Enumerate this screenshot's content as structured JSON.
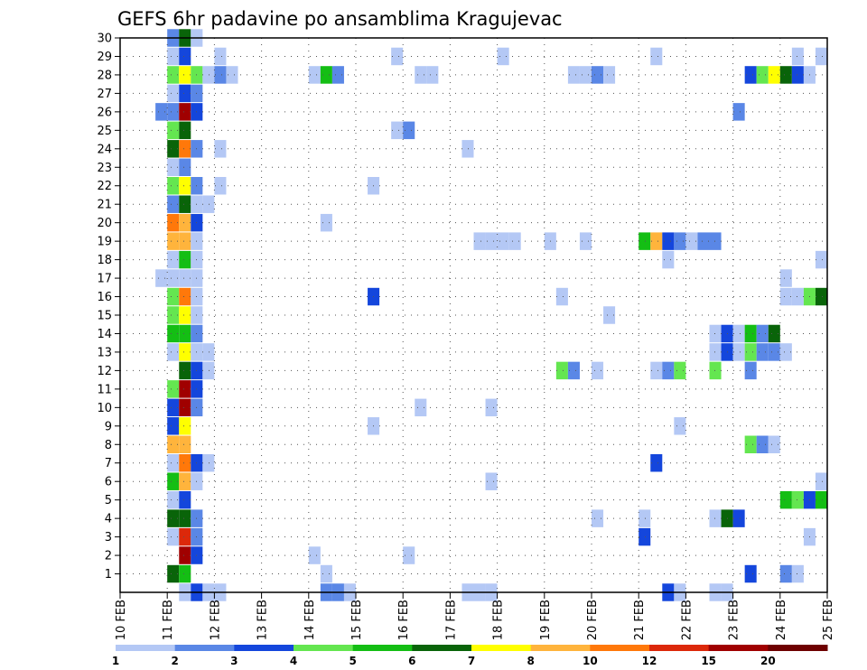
{
  "chart_data": {
    "type": "heatmap",
    "title": "GEFS 6hr padavine po ansamblima Kragujevac",
    "xlabel": "",
    "ylabel": "",
    "x_ticks": [
      "10 FEB",
      "11 FEB",
      "12 FEB",
      "13 FEB",
      "14 FEB",
      "15 FEB",
      "16 FEB",
      "17 FEB",
      "18 FEB",
      "19 FEB",
      "20 FEB",
      "21 FEB",
      "22 FEB",
      "23 FEB",
      "24 FEB",
      "25 FEB"
    ],
    "y_ticks": [
      1,
      2,
      3,
      4,
      5,
      6,
      7,
      8,
      9,
      10,
      11,
      12,
      13,
      14,
      15,
      16,
      17,
      18,
      19,
      20,
      21,
      22,
      23,
      24,
      25,
      26,
      27,
      28,
      29,
      30
    ],
    "xlim_days": [
      0,
      15
    ],
    "ylim": [
      0,
      30
    ],
    "grid": true,
    "legend": {
      "placement": "bottom",
      "levels": [
        "1",
        "2",
        "3",
        "4",
        "5",
        "6",
        "7",
        "8",
        "10",
        "12",
        "15",
        "20"
      ],
      "colors": [
        "#b4c8f5",
        "#5a87e6",
        "#1446dc",
        "#64e650",
        "#14be14",
        "#096409",
        "#ffff00",
        "#ffb43c",
        "#ff780a",
        "#dc280a",
        "#a00000",
        "#6e0000"
      ]
    },
    "cell_width_days": 0.25,
    "cells": [
      {
        "member": 1,
        "day": 11.0,
        "level": 6
      },
      {
        "member": 1,
        "day": 11.25,
        "level": 5
      },
      {
        "member": 1,
        "day": 14.25,
        "level": 1
      },
      {
        "member": 1,
        "day": 23.25,
        "level": 3
      },
      {
        "member": 1,
        "day": 24.0,
        "level": 2
      },
      {
        "member": 1,
        "day": 24.25,
        "level": 1
      },
      {
        "member": 2,
        "day": 11.25,
        "level": 11
      },
      {
        "member": 2,
        "day": 11.5,
        "level": 3
      },
      {
        "member": 2,
        "day": 14.0,
        "level": 1
      },
      {
        "member": 2,
        "day": 16.0,
        "level": 1
      },
      {
        "member": 3,
        "day": 11.0,
        "level": 1
      },
      {
        "member": 3,
        "day": 11.25,
        "level": 10
      },
      {
        "member": 3,
        "day": 11.5,
        "level": 2
      },
      {
        "member": 3,
        "day": 21.0,
        "level": 3
      },
      {
        "member": 3,
        "day": 24.5,
        "level": 1
      },
      {
        "member": 4,
        "day": 11.0,
        "level": 6
      },
      {
        "member": 4,
        "day": 11.25,
        "level": 6
      },
      {
        "member": 4,
        "day": 11.5,
        "level": 2
      },
      {
        "member": 4,
        "day": 20.0,
        "level": 1
      },
      {
        "member": 4,
        "day": 21.0,
        "level": 1
      },
      {
        "member": 4,
        "day": 22.5,
        "level": 1
      },
      {
        "member": 4,
        "day": 22.75,
        "level": 6
      },
      {
        "member": 4,
        "day": 23.0,
        "level": 3
      },
      {
        "member": 5,
        "day": 11.0,
        "level": 1
      },
      {
        "member": 5,
        "day": 11.25,
        "level": 3
      },
      {
        "member": 5,
        "day": 24.0,
        "level": 5
      },
      {
        "member": 5,
        "day": 24.25,
        "level": 4
      },
      {
        "member": 5,
        "day": 24.5,
        "level": 3
      },
      {
        "member": 5,
        "day": 24.75,
        "level": 5
      },
      {
        "member": 6,
        "day": 11.0,
        "level": 5
      },
      {
        "member": 6,
        "day": 11.25,
        "level": 8
      },
      {
        "member": 6,
        "day": 11.5,
        "level": 1
      },
      {
        "member": 6,
        "day": 17.75,
        "level": 1
      },
      {
        "member": 6,
        "day": 24.75,
        "level": 1
      },
      {
        "member": 7,
        "day": 11.0,
        "level": 1
      },
      {
        "member": 7,
        "day": 11.25,
        "level": 9
      },
      {
        "member": 7,
        "day": 11.5,
        "level": 3
      },
      {
        "member": 7,
        "day": 11.75,
        "level": 1
      },
      {
        "member": 7,
        "day": 21.25,
        "level": 3
      },
      {
        "member": 8,
        "day": 11.0,
        "level": 8
      },
      {
        "member": 8,
        "day": 11.25,
        "level": 8
      },
      {
        "member": 8,
        "day": 23.25,
        "level": 4
      },
      {
        "member": 8,
        "day": 23.5,
        "level": 2
      },
      {
        "member": 8,
        "day": 23.75,
        "level": 1
      },
      {
        "member": 9,
        "day": 11.0,
        "level": 3
      },
      {
        "member": 9,
        "day": 11.25,
        "level": 7
      },
      {
        "member": 9,
        "day": 15.25,
        "level": 1
      },
      {
        "member": 9,
        "day": 21.75,
        "level": 1
      },
      {
        "member": 10,
        "day": 11.0,
        "level": 3
      },
      {
        "member": 10,
        "day": 11.25,
        "level": 11
      },
      {
        "member": 10,
        "day": 11.5,
        "level": 2
      },
      {
        "member": 10,
        "day": 16.25,
        "level": 1
      },
      {
        "member": 10,
        "day": 17.75,
        "level": 1
      },
      {
        "member": 11,
        "day": 11.0,
        "level": 4
      },
      {
        "member": 11,
        "day": 11.25,
        "level": 11
      },
      {
        "member": 11,
        "day": 11.5,
        "level": 3
      },
      {
        "member": 12,
        "day": 11.25,
        "level": 6
      },
      {
        "member": 12,
        "day": 11.5,
        "level": 3
      },
      {
        "member": 12,
        "day": 11.75,
        "level": 1
      },
      {
        "member": 12,
        "day": 19.25,
        "level": 4
      },
      {
        "member": 12,
        "day": 19.5,
        "level": 2
      },
      {
        "member": 12,
        "day": 20.0,
        "level": 1
      },
      {
        "member": 12,
        "day": 21.25,
        "level": 1
      },
      {
        "member": 12,
        "day": 21.5,
        "level": 2
      },
      {
        "member": 12,
        "day": 21.75,
        "level": 4
      },
      {
        "member": 12,
        "day": 22.5,
        "level": 4
      },
      {
        "member": 12,
        "day": 23.25,
        "level": 2
      },
      {
        "member": 13,
        "day": 11.0,
        "level": 1
      },
      {
        "member": 13,
        "day": 11.25,
        "level": 7
      },
      {
        "member": 13,
        "day": 11.5,
        "level": 1
      },
      {
        "member": 13,
        "day": 11.75,
        "level": 1
      },
      {
        "member": 13,
        "day": 22.5,
        "level": 1
      },
      {
        "member": 13,
        "day": 22.75,
        "level": 3
      },
      {
        "member": 13,
        "day": 23.0,
        "level": 1
      },
      {
        "member": 13,
        "day": 23.25,
        "level": 4
      },
      {
        "member": 13,
        "day": 23.5,
        "level": 2
      },
      {
        "member": 13,
        "day": 23.75,
        "level": 2
      },
      {
        "member": 13,
        "day": 24.0,
        "level": 1
      },
      {
        "member": 14,
        "day": 11.0,
        "level": 5
      },
      {
        "member": 14,
        "day": 11.25,
        "level": 5
      },
      {
        "member": 14,
        "day": 11.5,
        "level": 2
      },
      {
        "member": 14,
        "day": 22.5,
        "level": 1
      },
      {
        "member": 14,
        "day": 22.75,
        "level": 3
      },
      {
        "member": 14,
        "day": 23.0,
        "level": 1
      },
      {
        "member": 14,
        "day": 23.25,
        "level": 5
      },
      {
        "member": 14,
        "day": 23.5,
        "level": 2
      },
      {
        "member": 14,
        "day": 23.75,
        "level": 6
      },
      {
        "member": 15,
        "day": 11.0,
        "level": 4
      },
      {
        "member": 15,
        "day": 11.25,
        "level": 7
      },
      {
        "member": 15,
        "day": 11.5,
        "level": 1
      },
      {
        "member": 15,
        "day": 20.25,
        "level": 1
      },
      {
        "member": 16,
        "day": 11.0,
        "level": 4
      },
      {
        "member": 16,
        "day": 11.25,
        "level": 9
      },
      {
        "member": 16,
        "day": 11.5,
        "level": 1
      },
      {
        "member": 16,
        "day": 15.25,
        "level": 3
      },
      {
        "member": 16,
        "day": 19.25,
        "level": 1
      },
      {
        "member": 16,
        "day": 24.0,
        "level": 1
      },
      {
        "member": 16,
        "day": 24.25,
        "level": 1
      },
      {
        "member": 16,
        "day": 24.5,
        "level": 4
      },
      {
        "member": 16,
        "day": 24.75,
        "level": 6
      },
      {
        "member": 17,
        "day": 10.75,
        "level": 1
      },
      {
        "member": 17,
        "day": 11.0,
        "level": 1
      },
      {
        "member": 17,
        "day": 11.25,
        "level": 1
      },
      {
        "member": 17,
        "day": 11.5,
        "level": 1
      },
      {
        "member": 17,
        "day": 24.0,
        "level": 1
      },
      {
        "member": 18,
        "day": 11.0,
        "level": 1
      },
      {
        "member": 18,
        "day": 11.25,
        "level": 5
      },
      {
        "member": 18,
        "day": 11.5,
        "level": 1
      },
      {
        "member": 18,
        "day": 21.5,
        "level": 1
      },
      {
        "member": 18,
        "day": 24.75,
        "level": 1
      },
      {
        "member": 19,
        "day": 11.0,
        "level": 8
      },
      {
        "member": 19,
        "day": 11.25,
        "level": 8
      },
      {
        "member": 19,
        "day": 11.5,
        "level": 1
      },
      {
        "member": 19,
        "day": 17.5,
        "level": 1
      },
      {
        "member": 19,
        "day": 17.75,
        "level": 1
      },
      {
        "member": 19,
        "day": 18.0,
        "level": 1
      },
      {
        "member": 19,
        "day": 18.25,
        "level": 1
      },
      {
        "member": 19,
        "day": 19.0,
        "level": 1
      },
      {
        "member": 19,
        "day": 19.75,
        "level": 1
      },
      {
        "member": 19,
        "day": 21.0,
        "level": 5
      },
      {
        "member": 19,
        "day": 21.25,
        "level": 8
      },
      {
        "member": 19,
        "day": 21.5,
        "level": 3
      },
      {
        "member": 19,
        "day": 21.75,
        "level": 2
      },
      {
        "member": 19,
        "day": 22.0,
        "level": 1
      },
      {
        "member": 19,
        "day": 22.25,
        "level": 2
      },
      {
        "member": 19,
        "day": 22.5,
        "level": 2
      },
      {
        "member": 20,
        "day": 11.0,
        "level": 9
      },
      {
        "member": 20,
        "day": 11.25,
        "level": 8
      },
      {
        "member": 20,
        "day": 11.5,
        "level": 3
      },
      {
        "member": 20,
        "day": 14.25,
        "level": 1
      },
      {
        "member": 21,
        "day": 11.0,
        "level": 2
      },
      {
        "member": 21,
        "day": 11.25,
        "level": 6
      },
      {
        "member": 21,
        "day": 11.5,
        "level": 1
      },
      {
        "member": 21,
        "day": 11.75,
        "level": 1
      },
      {
        "member": 22,
        "day": 11.0,
        "level": 4
      },
      {
        "member": 22,
        "day": 11.25,
        "level": 7
      },
      {
        "member": 22,
        "day": 11.5,
        "level": 2
      },
      {
        "member": 22,
        "day": 12.0,
        "level": 1
      },
      {
        "member": 22,
        "day": 15.25,
        "level": 1
      },
      {
        "member": 23,
        "day": 11.0,
        "level": 1
      },
      {
        "member": 23,
        "day": 11.25,
        "level": 2
      },
      {
        "member": 24,
        "day": 11.0,
        "level": 6
      },
      {
        "member": 24,
        "day": 11.25,
        "level": 9
      },
      {
        "member": 24,
        "day": 11.5,
        "level": 2
      },
      {
        "member": 24,
        "day": 12.0,
        "level": 1
      },
      {
        "member": 24,
        "day": 17.25,
        "level": 1
      },
      {
        "member": 25,
        "day": 11.0,
        "level": 4
      },
      {
        "member": 25,
        "day": 11.25,
        "level": 6
      },
      {
        "member": 25,
        "day": 15.75,
        "level": 1
      },
      {
        "member": 25,
        "day": 16.0,
        "level": 2
      },
      {
        "member": 26,
        "day": 10.75,
        "level": 2
      },
      {
        "member": 26,
        "day": 11.0,
        "level": 2
      },
      {
        "member": 26,
        "day": 11.25,
        "level": 11
      },
      {
        "member": 26,
        "day": 11.5,
        "level": 3
      },
      {
        "member": 26,
        "day": 23.0,
        "level": 2
      },
      {
        "member": 27,
        "day": 11.0,
        "level": 1
      },
      {
        "member": 27,
        "day": 11.25,
        "level": 3
      },
      {
        "member": 27,
        "day": 11.5,
        "level": 2
      },
      {
        "member": 28,
        "day": 11.0,
        "level": 4
      },
      {
        "member": 28,
        "day": 11.25,
        "level": 7
      },
      {
        "member": 28,
        "day": 11.5,
        "level": 4
      },
      {
        "member": 28,
        "day": 11.75,
        "level": 1
      },
      {
        "member": 28,
        "day": 12.0,
        "level": 2
      },
      {
        "member": 28,
        "day": 12.25,
        "level": 1
      },
      {
        "member": 28,
        "day": 14.0,
        "level": 1
      },
      {
        "member": 28,
        "day": 14.25,
        "level": 5
      },
      {
        "member": 28,
        "day": 14.5,
        "level": 2
      },
      {
        "member": 28,
        "day": 16.25,
        "level": 1
      },
      {
        "member": 28,
        "day": 16.5,
        "level": 1
      },
      {
        "member": 28,
        "day": 19.5,
        "level": 1
      },
      {
        "member": 28,
        "day": 19.75,
        "level": 1
      },
      {
        "member": 28,
        "day": 20.0,
        "level": 2
      },
      {
        "member": 28,
        "day": 20.25,
        "level": 1
      },
      {
        "member": 28,
        "day": 23.25,
        "level": 3
      },
      {
        "member": 28,
        "day": 23.5,
        "level": 4
      },
      {
        "member": 28,
        "day": 23.75,
        "level": 7
      },
      {
        "member": 28,
        "day": 24.0,
        "level": 6
      },
      {
        "member": 28,
        "day": 24.25,
        "level": 3
      },
      {
        "member": 28,
        "day": 24.5,
        "level": 1
      },
      {
        "member": 29,
        "day": 11.0,
        "level": 1
      },
      {
        "member": 29,
        "day": 11.25,
        "level": 3
      },
      {
        "member": 29,
        "day": 12.0,
        "level": 1
      },
      {
        "member": 29,
        "day": 15.75,
        "level": 1
      },
      {
        "member": 29,
        "day": 18.0,
        "level": 1
      },
      {
        "member": 29,
        "day": 21.25,
        "level": 1
      },
      {
        "member": 29,
        "day": 24.25,
        "level": 1
      },
      {
        "member": 29,
        "day": 24.75,
        "level": 1
      },
      {
        "member": 30,
        "day": 11.0,
        "level": 2
      },
      {
        "member": 30,
        "day": 11.25,
        "level": 6
      },
      {
        "member": 30,
        "day": 11.5,
        "level": 1
      },
      {
        "member": 0,
        "day": 11.25,
        "level": 1
      },
      {
        "member": 0,
        "day": 11.5,
        "level": 3
      },
      {
        "member": 0,
        "day": 11.75,
        "level": 1
      },
      {
        "member": 0,
        "day": 12.0,
        "level": 1
      },
      {
        "member": 0,
        "day": 14.25,
        "level": 2
      },
      {
        "member": 0,
        "day": 14.5,
        "level": 2
      },
      {
        "member": 0,
        "day": 14.75,
        "level": 1
      },
      {
        "member": 0,
        "day": 17.25,
        "level": 1
      },
      {
        "member": 0,
        "day": 17.5,
        "level": 1
      },
      {
        "member": 0,
        "day": 17.75,
        "level": 1
      },
      {
        "member": 0,
        "day": 21.5,
        "level": 3
      },
      {
        "member": 0,
        "day": 21.75,
        "level": 1
      },
      {
        "member": 0,
        "day": 22.5,
        "level": 1
      },
      {
        "member": 0,
        "day": 22.75,
        "level": 1
      }
    ]
  }
}
